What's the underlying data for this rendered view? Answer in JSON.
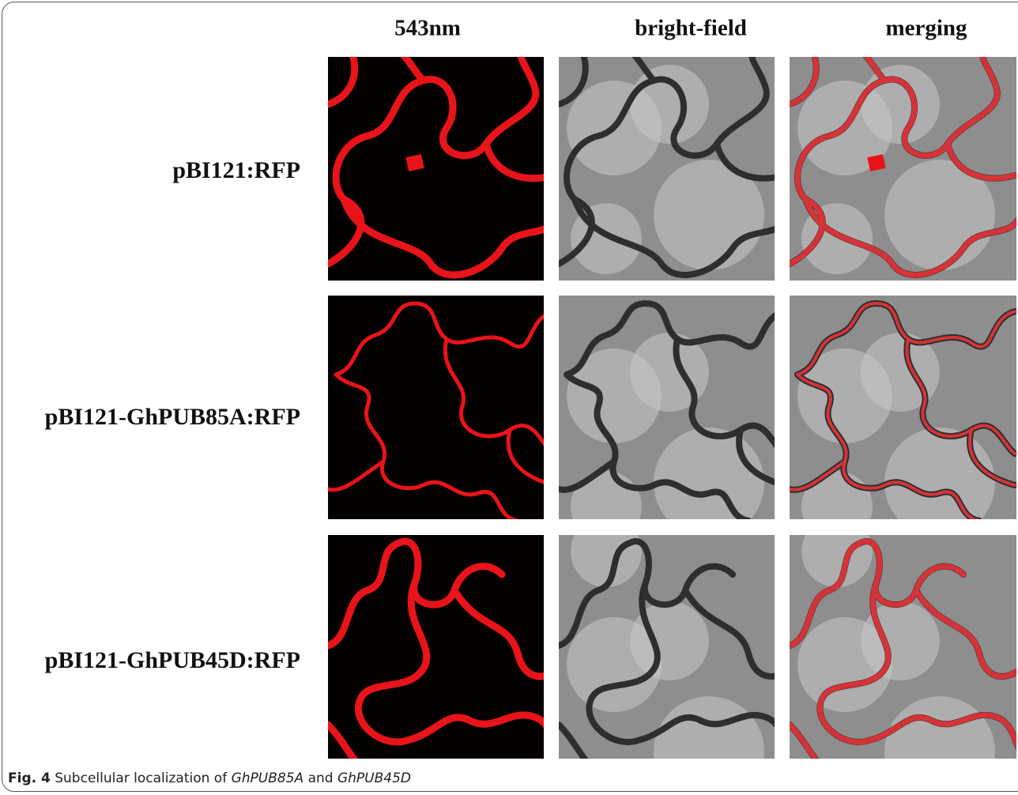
{
  "columns": [
    "543nm",
    "bright-field",
    "merging"
  ],
  "rows": [
    "pBI121:RFP",
    "pBI121-GhPUB85A:RFP",
    "pBI121-GhPUB45D:RFP"
  ],
  "caption": {
    "label": "Fig. 4",
    "text": "Subcellular localization of",
    "gene_1": "GhPUB85A",
    "conjunction": "and",
    "gene_2": "GhPUB45D"
  }
}
